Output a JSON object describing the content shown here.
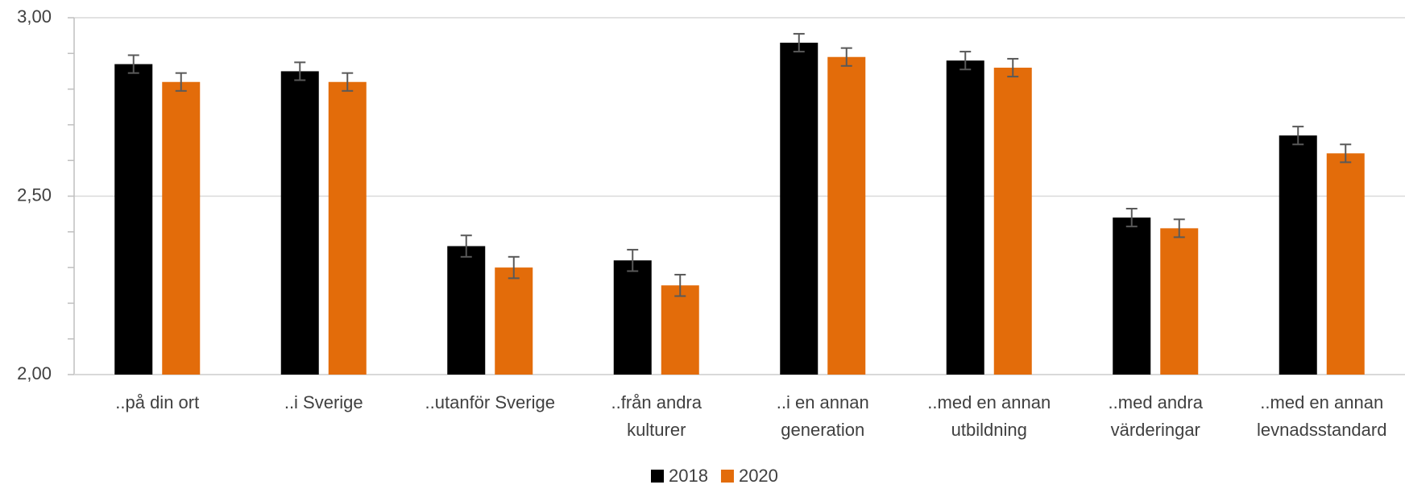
{
  "chart_data": {
    "type": "bar",
    "categories": [
      "..på din ort",
      "..i Sverige",
      "..utanför Sverige",
      "..från andra\nkulturer",
      "..i en annan\ngeneration",
      "..med en annan\nutbildning",
      "..med andra\nvärderingar",
      "..med en annan\nlevnadsstandard"
    ],
    "series": [
      {
        "name": "2018",
        "color": "#000000",
        "values": [
          2.87,
          2.85,
          2.36,
          2.32,
          2.93,
          2.88,
          2.44,
          2.67
        ],
        "errors": [
          0.025,
          0.025,
          0.03,
          0.03,
          0.025,
          0.025,
          0.025,
          0.025
        ]
      },
      {
        "name": "2020",
        "color": "#e36c0a",
        "values": [
          2.82,
          2.82,
          2.3,
          2.25,
          2.89,
          2.86,
          2.41,
          2.62
        ],
        "errors": [
          0.025,
          0.025,
          0.03,
          0.03,
          0.025,
          0.025,
          0.025,
          0.025
        ]
      }
    ],
    "ylim": [
      2,
      3
    ],
    "yticks": [
      {
        "value": 2,
        "label": "2,00"
      },
      {
        "value": 2.5,
        "label": "2,50"
      },
      {
        "value": 3,
        "label": "3,00"
      }
    ],
    "minor_yticks": [
      2.1,
      2.2,
      2.3,
      2.4,
      2.6,
      2.7,
      2.8,
      2.9
    ],
    "grid": true,
    "legend": "bottom"
  }
}
